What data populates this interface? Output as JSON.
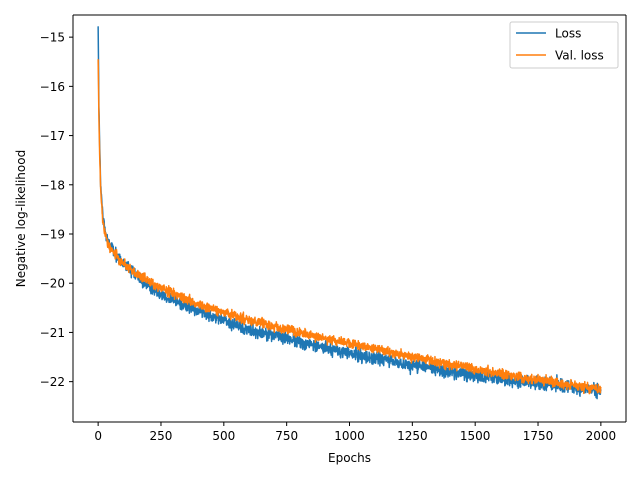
{
  "chart_data": {
    "type": "line",
    "title": "",
    "xlabel": "Epochs",
    "ylabel": "Negative log-likelihood",
    "xlim": [
      -100,
      2100
    ],
    "ylim": [
      -22.82,
      -14.55
    ],
    "xticks": [
      0,
      250,
      500,
      750,
      1000,
      1250,
      1500,
      1750,
      2000
    ],
    "xtick_labels": [
      "0",
      "250",
      "500",
      "750",
      "1000",
      "1250",
      "1500",
      "1750",
      "2000"
    ],
    "yticks": [
      -15,
      -16,
      -17,
      -18,
      -19,
      -20,
      -21,
      -22
    ],
    "ytick_labels": [
      "−15",
      "−16",
      "−17",
      "−18",
      "−19",
      "−20",
      "−21",
      "−22"
    ],
    "grid": false,
    "legend_position": "upper right",
    "series": [
      {
        "name": "Loss",
        "color": "#1f77b4",
        "x": [
          0,
          3,
          6,
          10,
          15,
          20,
          30,
          40,
          50,
          75,
          100,
          150,
          200,
          250,
          300,
          350,
          400,
          450,
          500,
          550,
          600,
          650,
          700,
          750,
          800,
          850,
          900,
          950,
          1000,
          1050,
          1100,
          1150,
          1200,
          1250,
          1300,
          1350,
          1400,
          1450,
          1500,
          1550,
          1600,
          1650,
          1700,
          1750,
          1800,
          1850,
          1900,
          1950,
          2000
        ],
        "y": [
          -14.78,
          -16.3,
          -17.2,
          -18.0,
          -18.4,
          -18.7,
          -19.0,
          -19.15,
          -19.25,
          -19.45,
          -19.6,
          -19.85,
          -20.05,
          -20.2,
          -20.35,
          -20.45,
          -20.55,
          -20.65,
          -20.75,
          -20.85,
          -20.95,
          -21.0,
          -21.05,
          -21.12,
          -21.2,
          -21.25,
          -21.3,
          -21.38,
          -21.42,
          -21.48,
          -21.52,
          -21.57,
          -21.62,
          -21.66,
          -21.7,
          -21.75,
          -21.8,
          -21.83,
          -21.87,
          -21.9,
          -21.93,
          -21.97,
          -22.0,
          -22.03,
          -22.06,
          -22.1,
          -22.12,
          -22.15,
          -22.2
        ],
        "noise": 0.11
      },
      {
        "name": "Val. loss",
        "color": "#ff7f0e",
        "x": [
          0,
          3,
          6,
          10,
          15,
          20,
          30,
          40,
          50,
          75,
          100,
          150,
          200,
          250,
          300,
          350,
          400,
          450,
          500,
          550,
          600,
          650,
          700,
          750,
          800,
          850,
          900,
          950,
          1000,
          1050,
          1100,
          1150,
          1200,
          1250,
          1300,
          1350,
          1400,
          1450,
          1500,
          1550,
          1600,
          1650,
          1700,
          1750,
          1800,
          1850,
          1900,
          1950,
          2000
        ],
        "y": [
          -15.45,
          -16.6,
          -17.4,
          -18.1,
          -18.5,
          -18.8,
          -19.05,
          -19.2,
          -19.3,
          -19.45,
          -19.6,
          -19.8,
          -19.97,
          -20.1,
          -20.22,
          -20.33,
          -20.43,
          -20.52,
          -20.6,
          -20.68,
          -20.75,
          -20.82,
          -20.88,
          -20.94,
          -21.0,
          -21.06,
          -21.11,
          -21.17,
          -21.22,
          -21.28,
          -21.33,
          -21.39,
          -21.44,
          -21.5,
          -21.55,
          -21.6,
          -21.65,
          -21.7,
          -21.75,
          -21.79,
          -21.84,
          -21.88,
          -21.92,
          -21.96,
          -22.0,
          -22.04,
          -22.08,
          -22.12,
          -22.16
        ],
        "noise": 0.08
      }
    ]
  }
}
